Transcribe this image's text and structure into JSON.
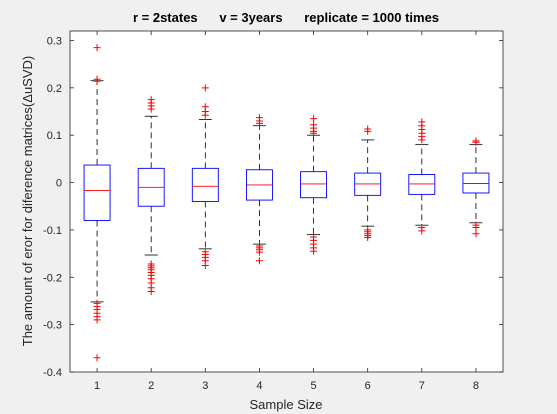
{
  "chart_data": {
    "type": "boxplot",
    "title": "r = 2states      v = 3years      replicate = 1000 times",
    "xlabel": "Sample Size",
    "ylabel": "The amount of eror for diference matrices(ΔuSVD)",
    "ylim": [
      -0.4,
      0.32
    ],
    "yticks": [
      0.3,
      0.2,
      0.1,
      0,
      -0.1,
      -0.2,
      -0.3,
      -0.4
    ],
    "ytick_labels": [
      "0.3",
      "0.2",
      "0.1",
      "0",
      "-0.1",
      "-0.2",
      "-0.3",
      "-0.4"
    ],
    "categories": [
      "1",
      "2",
      "3",
      "4",
      "5",
      "6",
      "7",
      "8"
    ],
    "grid": false,
    "colors": {
      "box": "#0000ff",
      "median": "#ff0000",
      "whisker": "#000000",
      "outlier": "#ff0000",
      "axes_bg": "#ffffff",
      "figure_bg": "#f0f0f0"
    },
    "boxes": [
      {
        "x": 1,
        "q1": -0.08,
        "median": -0.017,
        "q3": 0.037,
        "whisker_low": -0.252,
        "whisker_high": 0.215,
        "outliers": [
          0.285,
          0.218,
          0.214,
          -0.255,
          -0.262,
          -0.268,
          -0.276,
          -0.283,
          -0.29,
          -0.37
        ]
      },
      {
        "x": 2,
        "q1": -0.05,
        "median": -0.01,
        "q3": 0.03,
        "whisker_low": -0.153,
        "whisker_high": 0.14,
        "outliers": [
          0.175,
          0.168,
          0.162,
          0.155,
          -0.172,
          -0.176,
          -0.18,
          -0.184,
          -0.19,
          -0.196,
          -0.203,
          -0.212,
          -0.222,
          -0.23
        ]
      },
      {
        "x": 3,
        "q1": -0.04,
        "median": -0.008,
        "q3": 0.03,
        "whisker_low": -0.14,
        "whisker_high": 0.133,
        "outliers": [
          0.2,
          0.16,
          0.15,
          0.142,
          -0.146,
          -0.152,
          -0.158,
          -0.165,
          -0.175
        ]
      },
      {
        "x": 4,
        "q1": -0.037,
        "median": -0.005,
        "q3": 0.027,
        "whisker_low": -0.13,
        "whisker_high": 0.12,
        "outliers": [
          0.137,
          0.13,
          0.125,
          -0.134,
          -0.138,
          -0.142,
          -0.147,
          -0.165
        ]
      },
      {
        "x": 5,
        "q1": -0.032,
        "median": -0.003,
        "q3": 0.023,
        "whisker_low": -0.11,
        "whisker_high": 0.1,
        "outliers": [
          0.135,
          0.122,
          0.115,
          0.108,
          0.104,
          -0.115,
          -0.122,
          -0.13,
          -0.138,
          -0.145
        ]
      },
      {
        "x": 6,
        "q1": -0.027,
        "median": -0.003,
        "q3": 0.02,
        "whisker_low": -0.092,
        "whisker_high": 0.09,
        "outliers": [
          0.113,
          0.108,
          -0.1,
          -0.104,
          -0.108,
          -0.112,
          -0.116
        ]
      },
      {
        "x": 7,
        "q1": -0.025,
        "median": -0.003,
        "q3": 0.017,
        "whisker_low": -0.09,
        "whisker_high": 0.08,
        "outliers": [
          0.128,
          0.12,
          0.112,
          0.104,
          0.097,
          0.09,
          -0.095,
          -0.102
        ]
      },
      {
        "x": 8,
        "q1": -0.022,
        "median": -0.002,
        "q3": 0.02,
        "whisker_low": -0.085,
        "whisker_high": 0.08,
        "outliers": [
          0.088,
          0.085,
          -0.09,
          -0.095,
          -0.108
        ]
      }
    ]
  }
}
